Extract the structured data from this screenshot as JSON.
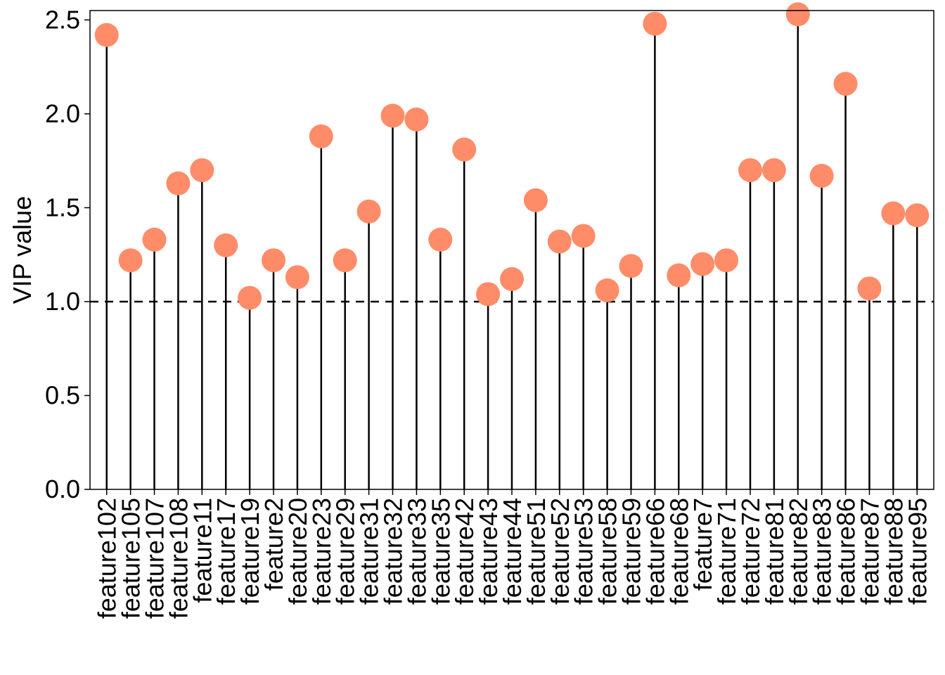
{
  "chart_data": {
    "type": "lollipop",
    "title": "",
    "xlabel": "",
    "ylabel": "VIP value",
    "ylim": [
      0,
      2.55
    ],
    "yticks": [
      "0.0",
      "0.5",
      "1.0",
      "1.5",
      "2.0",
      "2.5"
    ],
    "threshold": 1.0,
    "grid": false,
    "legend": "none",
    "colors": {
      "point": "#FF8C69",
      "stem": "#000000",
      "threshold": "#000000"
    },
    "categories": [
      "feature102",
      "feature105",
      "feature107",
      "feature108",
      "feature11",
      "feature17",
      "feature19",
      "feature2",
      "feature20",
      "feature23",
      "feature29",
      "feature31",
      "feature32",
      "feature33",
      "feature35",
      "feature42",
      "feature43",
      "feature44",
      "feature51",
      "feature52",
      "feature53",
      "feature58",
      "feature59",
      "feature66",
      "feature68",
      "feature7",
      "feature71",
      "feature72",
      "feature81",
      "feature82",
      "feature83",
      "feature86",
      "feature87",
      "feature88",
      "feature95"
    ],
    "values": [
      2.42,
      1.22,
      1.33,
      1.63,
      1.7,
      1.3,
      1.02,
      1.22,
      1.13,
      1.88,
      1.22,
      1.48,
      1.99,
      1.97,
      1.33,
      1.81,
      1.04,
      1.12,
      1.54,
      1.32,
      1.35,
      1.06,
      1.19,
      2.48,
      1.14,
      1.2,
      1.22,
      1.7,
      1.7,
      2.53,
      1.67,
      2.16,
      1.07,
      1.47,
      1.46
    ]
  }
}
